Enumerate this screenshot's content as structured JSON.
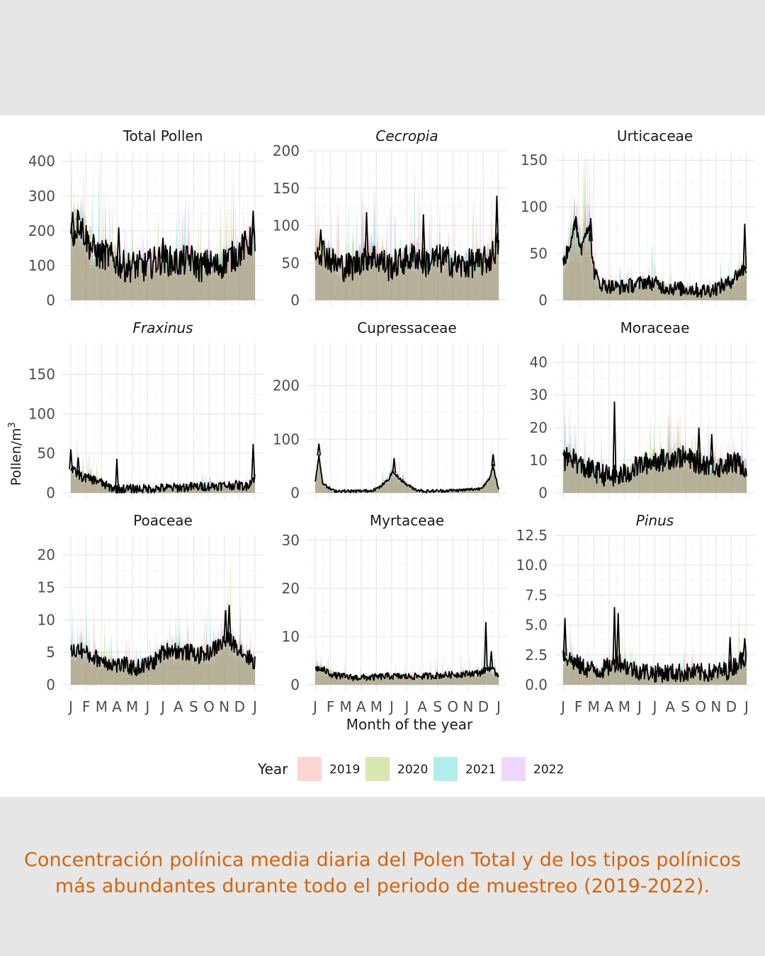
{
  "caption": {
    "line1": "Concentración polínica media diaria del Polen Total y de los tipos polínicos",
    "line2": "más abundantes durante todo el periodo de muestreo (2019-2022)."
  },
  "chart_data": {
    "type": "area",
    "xlabel": "Month of the year",
    "ylabel": "Pollen/m³",
    "ylabel_main": "Pollen/m",
    "ylabel_sup": "3",
    "month_ticks": [
      "J",
      "F",
      "M",
      "A",
      "M",
      "J",
      "J",
      "A",
      "S",
      "O",
      "N",
      "D",
      "J"
    ],
    "legend": {
      "title": "Year",
      "placement": "bottom",
      "entries": [
        {
          "label": "2019",
          "color": "#f8766d"
        },
        {
          "label": "2020",
          "color": "#7cae00"
        },
        {
          "label": "2021",
          "color": "#00bfc4"
        },
        {
          "label": "2022",
          "color": "#c77cff"
        }
      ]
    },
    "grid": true,
    "panels": [
      {
        "title": "Total Pollen",
        "italic": false,
        "ylim": [
          0,
          430
        ],
        "yticks": [
          0,
          100,
          200,
          300,
          400
        ],
        "ytick_labels": [
          "0",
          "100",
          "200",
          "300",
          "400"
        ],
        "mean_profile": [
          [
            0,
            200
          ],
          [
            0.02,
            190
          ],
          [
            0.04,
            230
          ],
          [
            0.06,
            210
          ],
          [
            0.1,
            160
          ],
          [
            0.15,
            130
          ],
          [
            0.2,
            130
          ],
          [
            0.25,
            110
          ],
          [
            0.3,
            95
          ],
          [
            0.35,
            100
          ],
          [
            0.4,
            95
          ],
          [
            0.45,
            110
          ],
          [
            0.5,
            120
          ],
          [
            0.55,
            110
          ],
          [
            0.6,
            110
          ],
          [
            0.65,
            120
          ],
          [
            0.7,
            95
          ],
          [
            0.75,
            105
          ],
          [
            0.8,
            95
          ],
          [
            0.85,
            120
          ],
          [
            0.9,
            130
          ],
          [
            0.95,
            160
          ],
          [
            1,
            175
          ]
        ],
        "mean_noise": 45,
        "spikes": [
          [
            0.01,
            255
          ],
          [
            0.04,
            258
          ],
          [
            0.26,
            210
          ],
          [
            0.5,
            180
          ],
          [
            0.99,
            258
          ]
        ]
      },
      {
        "title": "Cecropia",
        "italic": true,
        "ylim": [
          0,
          200
        ],
        "yticks": [
          0,
          50,
          100,
          150,
          200
        ],
        "ytick_labels": [
          "0",
          "50",
          "100",
          "150",
          "200"
        ],
        "mean_profile": [
          [
            0,
            70
          ],
          [
            0.05,
            65
          ],
          [
            0.1,
            50
          ],
          [
            0.15,
            45
          ],
          [
            0.2,
            45
          ],
          [
            0.25,
            55
          ],
          [
            0.3,
            60
          ],
          [
            0.35,
            55
          ],
          [
            0.4,
            45
          ],
          [
            0.45,
            50
          ],
          [
            0.5,
            55
          ],
          [
            0.55,
            60
          ],
          [
            0.6,
            50
          ],
          [
            0.65,
            55
          ],
          [
            0.7,
            55
          ],
          [
            0.75,
            50
          ],
          [
            0.8,
            45
          ],
          [
            0.85,
            50
          ],
          [
            0.9,
            50
          ],
          [
            0.95,
            55
          ],
          [
            1,
            75
          ]
        ],
        "mean_noise": 20,
        "spikes": [
          [
            0.03,
            95
          ],
          [
            0.28,
            118
          ],
          [
            0.59,
            115
          ],
          [
            0.99,
            140
          ]
        ]
      },
      {
        "title": "Urticaceae",
        "italic": false,
        "ylim": [
          0,
          160
        ],
        "yticks": [
          0,
          50,
          100,
          150
        ],
        "ytick_labels": [
          "0",
          "50",
          "100",
          "150"
        ],
        "mean_profile": [
          [
            0,
            40
          ],
          [
            0.03,
            55
          ],
          [
            0.06,
            80
          ],
          [
            0.08,
            70
          ],
          [
            0.1,
            55
          ],
          [
            0.12,
            75
          ],
          [
            0.14,
            80
          ],
          [
            0.17,
            30
          ],
          [
            0.2,
            18
          ],
          [
            0.25,
            15
          ],
          [
            0.3,
            14
          ],
          [
            0.35,
            15
          ],
          [
            0.4,
            17
          ],
          [
            0.45,
            20
          ],
          [
            0.5,
            18
          ],
          [
            0.55,
            14
          ],
          [
            0.6,
            13
          ],
          [
            0.65,
            12
          ],
          [
            0.7,
            12
          ],
          [
            0.75,
            10
          ],
          [
            0.8,
            11
          ],
          [
            0.85,
            14
          ],
          [
            0.9,
            18
          ],
          [
            0.95,
            28
          ],
          [
            1,
            35
          ]
        ],
        "mean_noise": 8,
        "spikes": [
          [
            0.07,
            90
          ],
          [
            0.15,
            88
          ],
          [
            0.99,
            82
          ]
        ]
      },
      {
        "title": "Fraxinus",
        "italic": true,
        "ylim": [
          0,
          190
        ],
        "yticks": [
          0,
          50,
          100,
          150
        ],
        "ytick_labels": [
          "0",
          "50",
          "100",
          "150"
        ],
        "mean_profile": [
          [
            0,
            30
          ],
          [
            0.03,
            25
          ],
          [
            0.06,
            20
          ],
          [
            0.1,
            18
          ],
          [
            0.15,
            15
          ],
          [
            0.2,
            8
          ],
          [
            0.25,
            5
          ],
          [
            0.3,
            5
          ],
          [
            0.4,
            5
          ],
          [
            0.5,
            6
          ],
          [
            0.6,
            7
          ],
          [
            0.7,
            8
          ],
          [
            0.8,
            9
          ],
          [
            0.9,
            10
          ],
          [
            0.95,
            8
          ],
          [
            1,
            20
          ]
        ],
        "mean_noise": 6,
        "spikes": [
          [
            0.0,
            55
          ],
          [
            0.04,
            45
          ],
          [
            0.25,
            43
          ],
          [
            0.99,
            62
          ]
        ]
      },
      {
        "title": "Cupressaceae",
        "italic": false,
        "ylim": [
          0,
          280
        ],
        "yticks": [
          0,
          100,
          200
        ],
        "ytick_labels": [
          "0",
          "100",
          "200"
        ],
        "mean_profile": [
          [
            0,
            20
          ],
          [
            0.02,
            70
          ],
          [
            0.04,
            20
          ],
          [
            0.06,
            12
          ],
          [
            0.1,
            4
          ],
          [
            0.2,
            3
          ],
          [
            0.3,
            4
          ],
          [
            0.35,
            10
          ],
          [
            0.4,
            25
          ],
          [
            0.42,
            40
          ],
          [
            0.45,
            30
          ],
          [
            0.5,
            15
          ],
          [
            0.55,
            6
          ],
          [
            0.6,
            3
          ],
          [
            0.7,
            4
          ],
          [
            0.8,
            5
          ],
          [
            0.9,
            8
          ],
          [
            0.95,
            25
          ],
          [
            0.97,
            50
          ],
          [
            1,
            5
          ]
        ],
        "mean_noise": 3,
        "spikes": [
          [
            0.02,
            92
          ],
          [
            0.43,
            65
          ],
          [
            0.97,
            72
          ]
        ]
      },
      {
        "title": "Moraceae",
        "italic": false,
        "ylim": [
          0,
          46
        ],
        "yticks": [
          0,
          10,
          20,
          30,
          40
        ],
        "ytick_labels": [
          "0",
          "10",
          "20",
          "30",
          "40"
        ],
        "mean_profile": [
          [
            0,
            10
          ],
          [
            0.05,
            11
          ],
          [
            0.1,
            8
          ],
          [
            0.15,
            7
          ],
          [
            0.2,
            6
          ],
          [
            0.25,
            5
          ],
          [
            0.3,
            5
          ],
          [
            0.35,
            6
          ],
          [
            0.4,
            8
          ],
          [
            0.45,
            9
          ],
          [
            0.5,
            10
          ],
          [
            0.55,
            10
          ],
          [
            0.6,
            11
          ],
          [
            0.65,
            11
          ],
          [
            0.7,
            10
          ],
          [
            0.75,
            9
          ],
          [
            0.8,
            9
          ],
          [
            0.85,
            8
          ],
          [
            0.9,
            9
          ],
          [
            0.95,
            9
          ],
          [
            1,
            8
          ]
        ],
        "mean_noise": 3.5,
        "spikes": [
          [
            0.28,
            28
          ],
          [
            0.74,
            20
          ],
          [
            0.81,
            18
          ]
        ]
      },
      {
        "title": "Poaceae",
        "italic": false,
        "ylim": [
          0,
          23
        ],
        "yticks": [
          0,
          5,
          10,
          15,
          20
        ],
        "ytick_labels": [
          "0",
          "5",
          "10",
          "15",
          "20"
        ],
        "mean_profile": [
          [
            0,
            5
          ],
          [
            0.05,
            5.5
          ],
          [
            0.1,
            4.5
          ],
          [
            0.15,
            4
          ],
          [
            0.2,
            3.5
          ],
          [
            0.25,
            3
          ],
          [
            0.3,
            3
          ],
          [
            0.35,
            2.5
          ],
          [
            0.4,
            3
          ],
          [
            0.45,
            3.5
          ],
          [
            0.5,
            5
          ],
          [
            0.55,
            5.5
          ],
          [
            0.6,
            5
          ],
          [
            0.65,
            5
          ],
          [
            0.7,
            4.5
          ],
          [
            0.75,
            5
          ],
          [
            0.8,
            6
          ],
          [
            0.85,
            7
          ],
          [
            0.9,
            6
          ],
          [
            0.95,
            4.5
          ],
          [
            1,
            3.5
          ]
        ],
        "mean_noise": 1.3,
        "spikes": [
          [
            0.86,
            12.3
          ],
          [
            0.84,
            11.5
          ]
        ]
      },
      {
        "title": "Myrtaceae",
        "italic": false,
        "ylim": [
          0,
          31
        ],
        "yticks": [
          0,
          10,
          20,
          30
        ],
        "ytick_labels": [
          "0",
          "10",
          "20",
          "30"
        ],
        "mean_profile": [
          [
            0,
            3.5
          ],
          [
            0.05,
            3
          ],
          [
            0.1,
            2
          ],
          [
            0.2,
            1.5
          ],
          [
            0.3,
            1.5
          ],
          [
            0.4,
            1.8
          ],
          [
            0.5,
            1.7
          ],
          [
            0.6,
            1.8
          ],
          [
            0.7,
            2
          ],
          [
            0.8,
            2.2
          ],
          [
            0.9,
            2.5
          ],
          [
            0.95,
            3.5
          ],
          [
            1,
            2
          ]
        ],
        "mean_noise": 0.7,
        "spikes": [
          [
            0.93,
            13
          ],
          [
            0.96,
            7
          ]
        ]
      },
      {
        "title": "Pinus",
        "italic": true,
        "ylim": [
          0,
          12.5
        ],
        "yticks": [
          0,
          2.5,
          5,
          7.5,
          10,
          12.5
        ],
        "ytick_labels": [
          "0.0",
          "2.5",
          "5.0",
          "7.5",
          "10.0",
          "12.5"
        ],
        "mean_profile": [
          [
            0,
            2.5
          ],
          [
            0.05,
            2
          ],
          [
            0.1,
            1.5
          ],
          [
            0.15,
            1.3
          ],
          [
            0.2,
            1.2
          ],
          [
            0.25,
            1.5
          ],
          [
            0.3,
            2
          ],
          [
            0.35,
            1.5
          ],
          [
            0.4,
            1.2
          ],
          [
            0.5,
            1
          ],
          [
            0.6,
            1
          ],
          [
            0.7,
            1
          ],
          [
            0.8,
            1
          ],
          [
            0.9,
            1.2
          ],
          [
            0.95,
            1.8
          ],
          [
            1,
            2.5
          ]
        ],
        "mean_noise": 0.8,
        "spikes": [
          [
            0.01,
            5.6
          ],
          [
            0.28,
            6.5
          ],
          [
            0.3,
            6.0
          ],
          [
            0.91,
            4.0
          ],
          [
            0.99,
            3.9
          ]
        ]
      }
    ]
  }
}
